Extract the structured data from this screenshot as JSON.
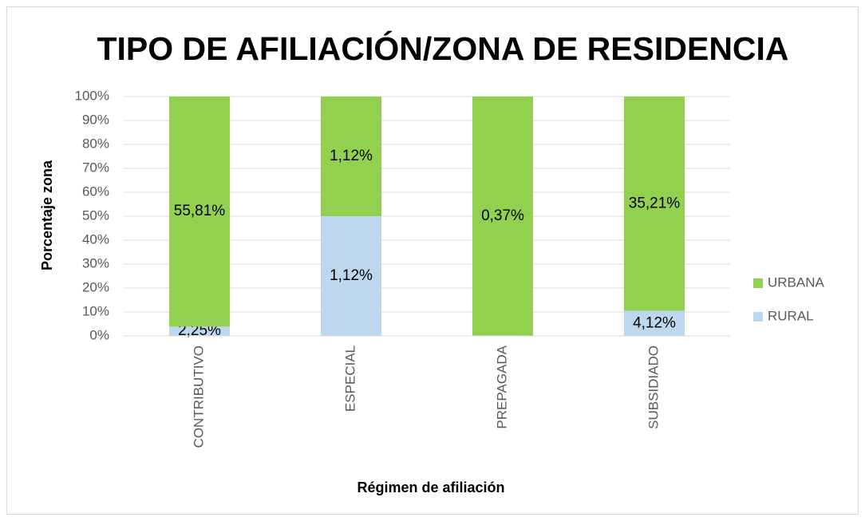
{
  "chart_data": {
    "type": "bar",
    "stacking": "percent",
    "title": "TIPO DE AFILIACIÓN/ZONA DE RESIDENCIA",
    "x_label": "Régimen de afiliación",
    "y_label": "Porcentaje zona",
    "categories": [
      "CONTRIBUTIVO",
      "ESPECIAL",
      "PREPAGADA",
      "SUBSIDIADO"
    ],
    "series": [
      {
        "name": "RURAL",
        "color": "#bdd7ee",
        "values": [
          2.25,
          1.12,
          0,
          4.12
        ],
        "value_labels": [
          "2,25%",
          "1,12%",
          null,
          "4,12%"
        ]
      },
      {
        "name": "URBANA",
        "color": "#92d050",
        "values": [
          55.81,
          1.12,
          0.37,
          35.21
        ],
        "value_labels": [
          "55,81%",
          "1,12%",
          "0,37%",
          "35,21%"
        ]
      }
    ],
    "ylim": [
      0,
      100
    ],
    "yticks": [
      {
        "value": 0,
        "label": "0%"
      },
      {
        "value": 10,
        "label": "10%"
      },
      {
        "value": 20,
        "label": "20%"
      },
      {
        "value": 30,
        "label": "30%"
      },
      {
        "value": 40,
        "label": "40%"
      },
      {
        "value": 50,
        "label": "50%"
      },
      {
        "value": 60,
        "label": "60%"
      },
      {
        "value": 70,
        "label": "70%"
      },
      {
        "value": 80,
        "label": "80%"
      },
      {
        "value": 90,
        "label": "90%"
      },
      {
        "value": 100,
        "label": "100%"
      }
    ],
    "grid": true,
    "legend": "right"
  }
}
